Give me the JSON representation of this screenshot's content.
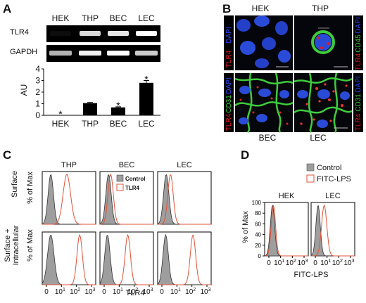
{
  "panels": {
    "a": {
      "label": "A",
      "lanes": [
        "HEK",
        "THP",
        "BEC",
        "LEC"
      ],
      "genes": [
        "TLR4",
        "GAPDH"
      ],
      "tlr4_band_intensity": [
        0.05,
        0.85,
        0.9,
        1.0
      ],
      "gapdh_band_intensity": [
        0.7,
        0.95,
        1.0,
        0.8
      ]
    },
    "b": {
      "label": "B",
      "top_labels": [
        "HEK",
        "THP"
      ],
      "bottom_labels": [
        "BEC",
        "LEC"
      ],
      "left_top": [
        "DAPI",
        "TLR4"
      ],
      "left_bottom": [
        "DAPI",
        "CD31",
        "TLR4"
      ],
      "right_top": [
        "DAPI",
        "CD45",
        "TLR4"
      ],
      "right_bottom": [
        "DAPI",
        "CD31",
        "TLR4"
      ]
    },
    "c": {
      "label": "C",
      "columns": [
        "THP",
        "BEC",
        "LEC"
      ],
      "row_labels": [
        "Surface",
        "Surface + Intracellular"
      ],
      "row_label_lines": [
        [
          "Surface"
        ],
        [
          "Surface +",
          "Intracellular"
        ]
      ],
      "ylabel": "% of Max",
      "xlabel": "TLR4",
      "xticks": [
        "0",
        "10",
        "1",
        "10",
        "2",
        "10",
        "3"
      ],
      "legend": [
        "Control",
        "TLR4"
      ]
    },
    "d": {
      "label": "D",
      "columns": [
        "HEK",
        "LEC"
      ],
      "ylabel": "% of Max",
      "yticks": [
        "100",
        "80",
        "60",
        "40",
        "20",
        "0"
      ],
      "xlabel": "FITC-LPS",
      "xticks": [
        "0",
        "10",
        "1",
        "10",
        "2",
        "10",
        "3"
      ],
      "legend": [
        "Control",
        "FITC-LPS"
      ]
    }
  },
  "chart_data": {
    "type": "bar",
    "categories": [
      "HEK",
      "THP",
      "BEC",
      "LEC"
    ],
    "values": [
      0.0,
      1.05,
      0.68,
      2.8
    ],
    "errors": [
      0.0,
      0.06,
      0.05,
      0.2
    ],
    "significant": [
      true,
      false,
      true,
      true
    ],
    "significance_marker": "*",
    "ylabel": "AU",
    "yticks": [
      "0",
      "1",
      "2",
      "3",
      "4"
    ],
    "ylim": [
      0,
      4
    ],
    "color": "#000000"
  },
  "colors": {
    "dapi": "#2a4bff",
    "tlr4": "#e41a1c",
    "marker_green": "#3dcc3d",
    "control_fill": "#9e9e9e",
    "tlr4_line": "#e0533a"
  }
}
